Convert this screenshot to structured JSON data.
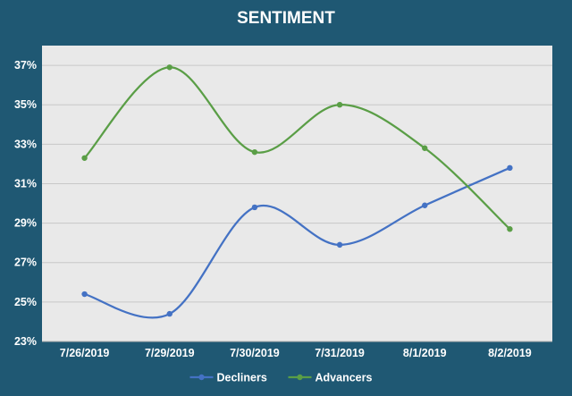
{
  "chart_data": {
    "type": "line",
    "title": "SENTIMENT",
    "categories": [
      "7/26/2019",
      "7/29/2019",
      "7/30/2019",
      "7/31/2019",
      "8/1/2019",
      "8/2/2019"
    ],
    "series": [
      {
        "name": "Decliners",
        "color": "#4472c4",
        "values": [
          25.4,
          24.4,
          29.8,
          27.9,
          29.9,
          31.8
        ]
      },
      {
        "name": "Advancers",
        "color": "#5a9e46",
        "values": [
          32.3,
          36.9,
          32.6,
          35.0,
          32.8,
          28.7
        ]
      }
    ],
    "ylim": [
      23,
      38
    ],
    "yticks": [
      23,
      25,
      27,
      29,
      31,
      33,
      35,
      37
    ],
    "ytick_labels": [
      "23%",
      "25%",
      "27%",
      "29%",
      "31%",
      "33%",
      "35%",
      "37%"
    ],
    "xlabel": "",
    "ylabel": "",
    "grid": true,
    "legend": "bottom",
    "colors": {
      "frame": "#1f5873",
      "plot_bg": "#e9e9e9",
      "grid": "#c8c8c8",
      "text": "#ffffff"
    }
  }
}
